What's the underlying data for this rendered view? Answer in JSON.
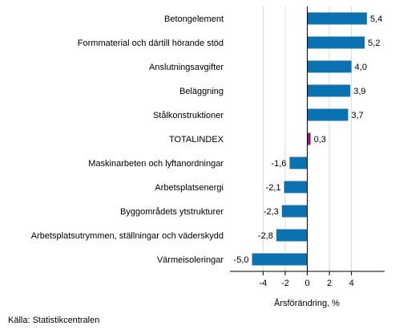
{
  "chart_data": {
    "type": "bar",
    "orientation": "horizontal",
    "categories": [
      "Betongelement",
      "Formmaterial och därtill hörande stöd",
      "Anslutningsavgifter",
      "Beläggning",
      "Stålkonstruktioner",
      "TOTALINDEX",
      "Maskinarbeten och lyftanordningar",
      "Arbetsplatsenergi",
      "Byggområdets ytstrukturer",
      "Arbetsplatsutrymmen, ställningar och väderskydd",
      "Värmeisoleringar"
    ],
    "values": [
      5.4,
      5.2,
      4.0,
      3.9,
      3.7,
      0.3,
      -1.6,
      -2.1,
      -2.3,
      -2.8,
      -5.0
    ],
    "value_labels": [
      "5,4",
      "5,2",
      "4,0",
      "3,9",
      "3,7",
      "0,3",
      "-1,6",
      "-2,1",
      "-2,3",
      "-2,8",
      "-5,0"
    ],
    "highlight_category": "TOTALINDEX",
    "colors": {
      "bar": "#0a72b0",
      "highlight": "#8b1a78",
      "axis": "#000000",
      "grid": "#d9d9d9"
    },
    "xlabel": "Årsförändring, %",
    "xticks": [
      -4,
      -2,
      0,
      2,
      4
    ],
    "xtick_labels": [
      "-4",
      "-2",
      "0",
      "2",
      "4"
    ],
    "xlim": [
      -7,
      7
    ],
    "grid": true
  },
  "source": "Källa: Statistikcentralen"
}
